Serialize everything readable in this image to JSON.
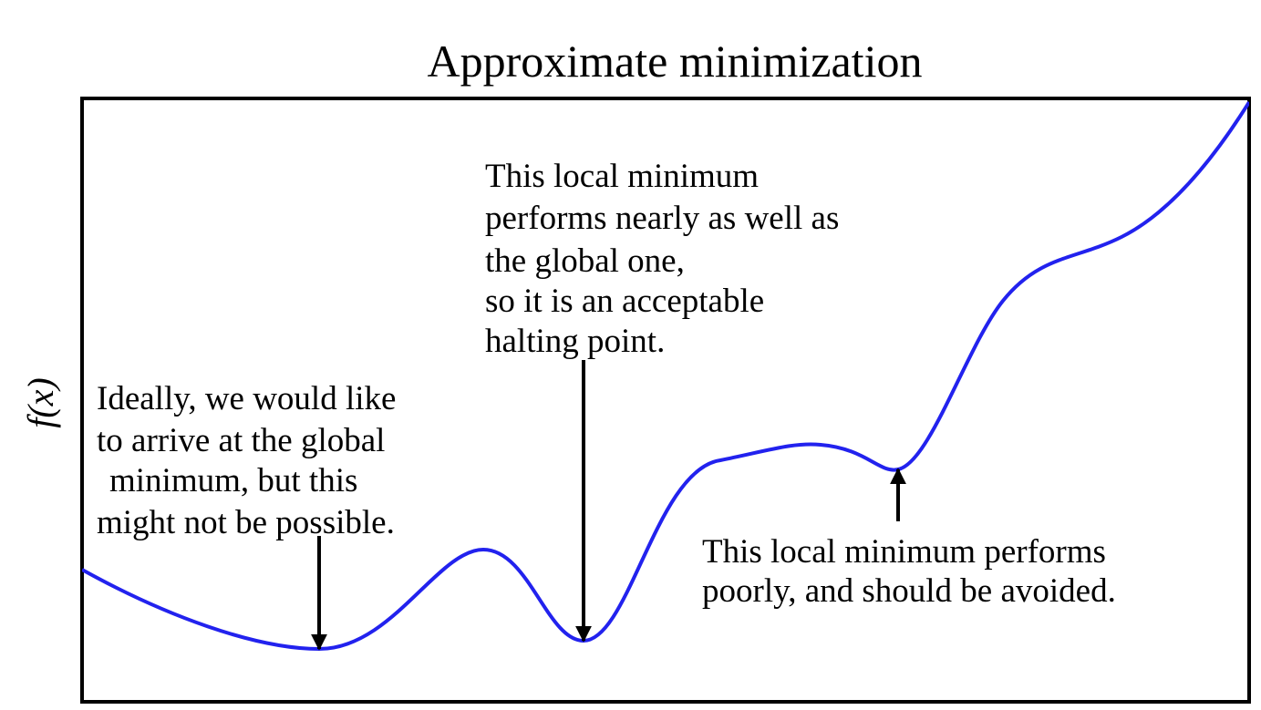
{
  "title": "Approximate minimization",
  "y_label": "f(x)",
  "annotations": [
    {
      "lines": [
        "Ideally, we would like",
        "to arrive at the global",
        "minimum, but this",
        "might not be possible."
      ]
    },
    {
      "lines": [
        "This local minimum",
        "performs nearly as well as",
        "the global one,",
        "so it is an acceptable",
        "halting point."
      ]
    },
    {
      "lines": [
        "This local minimum performs",
        "poorly, and should be avoided."
      ]
    }
  ]
}
